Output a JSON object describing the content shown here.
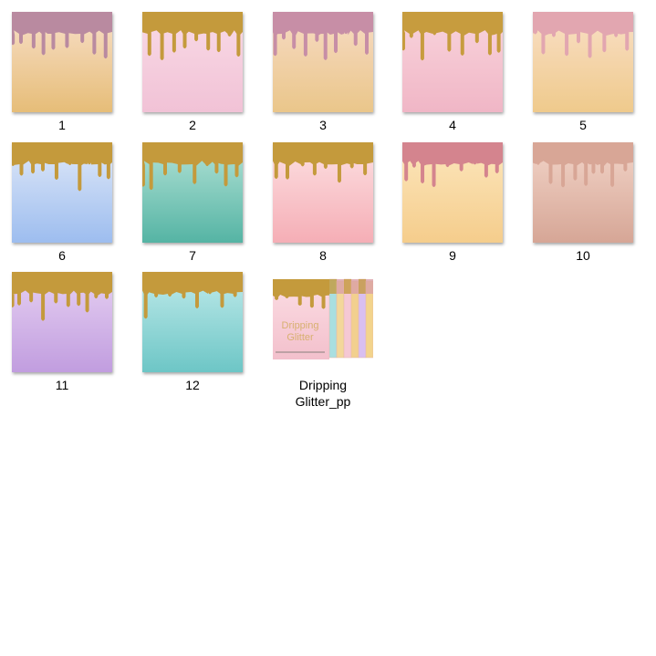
{
  "files": [
    {
      "name": "1",
      "drip": "#b98aa0",
      "top": "#f8dfc8",
      "bottom": "#e6bd78"
    },
    {
      "name": "2",
      "drip": "#c49a3c",
      "top": "#f9dae6",
      "bottom": "#f1c2d6"
    },
    {
      "name": "3",
      "drip": "#c78ea6",
      "top": "#f7dbc4",
      "bottom": "#eac68a"
    },
    {
      "name": "4",
      "drip": "#c79c3e",
      "top": "#f9d4dc",
      "bottom": "#f0b6c6"
    },
    {
      "name": "5",
      "drip": "#e2a6b0",
      "top": "#f9dfc6",
      "bottom": "#efca8c"
    },
    {
      "name": "6",
      "drip": "#c49a3c",
      "top": "#dfe8f8",
      "bottom": "#9dbdef"
    },
    {
      "name": "7",
      "drip": "#c49a3c",
      "top": "#b2e2d6",
      "bottom": "#55b4a4"
    },
    {
      "name": "8",
      "drip": "#c49a3c",
      "top": "#fde0e2",
      "bottom": "#f5aeb6"
    },
    {
      "name": "9",
      "drip": "#d4848e",
      "top": "#fce6bc",
      "bottom": "#f5cd8c"
    },
    {
      "name": "10",
      "drip": "#d8a696",
      "top": "#f2d4c8",
      "bottom": "#d6a696"
    },
    {
      "name": "11",
      "drip": "#c49a3c",
      "top": "#e6d0f2",
      "bottom": "#c19ddf"
    },
    {
      "name": "12",
      "drip": "#c49a3c",
      "top": "#bfeaea",
      "bottom": "#6dc6c6"
    },
    {
      "name": "Dripping Glitter_pp",
      "cover": true,
      "cover_title": "Dripping Glitter",
      "drip": "#c49a3c",
      "top": "#fbdde4",
      "bottom": "#f3c0cc",
      "strips": [
        "#a9dfe0",
        "#f3d79a",
        "#f5c8d4",
        "#f2d08e",
        "#d9bff0",
        "#f3d48c"
      ]
    }
  ]
}
